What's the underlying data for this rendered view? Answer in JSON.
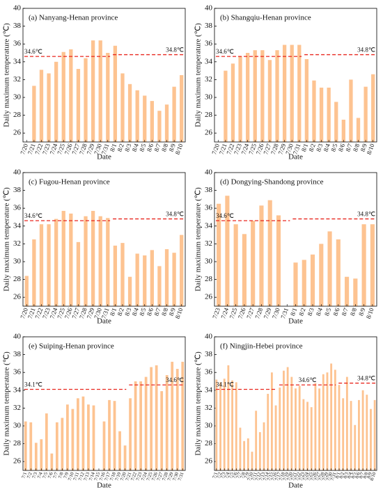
{
  "chart_data": [
    {
      "type": "bar",
      "title": "(a) Nanyang-Henan province",
      "xlabel": "Date",
      "ylabel": "Daily maximum temperature (℃)",
      "color": "#fdc391",
      "categories": [
        "7/20",
        "7/21",
        "7/22",
        "7/23",
        "7/24",
        "7/25",
        "7/26",
        "7/27",
        "7/28",
        "7/29",
        "7/30",
        "7/31",
        "8/1",
        "8/2",
        "8/3",
        "8/4",
        "8/5",
        "8/6",
        "8/7",
        "8/8",
        "8/9",
        "8/10"
      ],
      "values": [
        null,
        31.3,
        33.1,
        32.7,
        34.0,
        35.1,
        35.4,
        33.2,
        34.4,
        36.4,
        36.4,
        35.0,
        35.8,
        32.7,
        31.5,
        30.8,
        30.2,
        29.6,
        28.5,
        29.2,
        31.2,
        32.5
      ],
      "ylim": [
        25,
        40
      ],
      "yticks": [
        26,
        28,
        30,
        32,
        34,
        36,
        38,
        40
      ],
      "threshold_color": "#e8261e",
      "thresholds": [
        {
          "value": 34.6,
          "label": "34.6℃",
          "start": "7/20",
          "end": "7/31"
        },
        {
          "value": 34.8,
          "label": "34.8℃",
          "start": "8/1",
          "end": "8/10"
        }
      ]
    },
    {
      "type": "bar",
      "title": "(b) Shangqiu-Henan province",
      "xlabel": "Date",
      "ylabel": "Daily maximum temperature (℃)",
      "color": "#fdc391",
      "categories": [
        "7/20",
        "7/21",
        "7/22",
        "7/23",
        "7/24",
        "7/25",
        "7/26",
        "7/27",
        "7/28",
        "7/29",
        "7/30",
        "7/31",
        "8/1",
        "8/2",
        "8/3",
        "8/4",
        "8/5",
        "8/6",
        "8/7",
        "8/8",
        "8/9",
        "8/10"
      ],
      "values": [
        null,
        33.0,
        33.8,
        34.6,
        35.0,
        35.3,
        35.3,
        34.2,
        35.3,
        35.9,
        35.9,
        35.9,
        34.3,
        31.9,
        31.1,
        31.1,
        29.5,
        27.5,
        32.0,
        27.7,
        31.2,
        32.6
      ],
      "ylim": [
        25,
        40
      ],
      "yticks": [
        26,
        28,
        30,
        32,
        34,
        36,
        38,
        40
      ],
      "threshold_color": "#e8261e",
      "thresholds": [
        {
          "value": 34.6,
          "label": "34.6℃",
          "start": "7/20",
          "end": "7/31"
        },
        {
          "value": 34.8,
          "label": "34.8℃",
          "start": "8/1",
          "end": "8/10"
        }
      ]
    },
    {
      "type": "bar",
      "title": "(c) Fugou-Henan province",
      "xlabel": "Date",
      "ylabel": "Daily maximum temperature (℃)",
      "color": "#fdc391",
      "categories": [
        "7/20",
        "7/21",
        "7/22",
        "7/23",
        "7/24",
        "7/25",
        "7/26",
        "7/27",
        "7/28",
        "7/29",
        "7/30",
        "7/31",
        "8/1",
        "8/2",
        "8/3",
        "8/4",
        "8/5",
        "8/6",
        "8/7",
        "8/8",
        "8/9",
        "8/10"
      ],
      "values": [
        28.4,
        32.5,
        34.2,
        34.2,
        34.8,
        35.7,
        35.4,
        32.2,
        35.1,
        35.7,
        35.1,
        34.9,
        31.8,
        32.1,
        28.3,
        30.9,
        30.7,
        31.3,
        29.5,
        31.4,
        31.0,
        33.0
      ],
      "ylim": [
        25,
        40
      ],
      "yticks": [
        26,
        28,
        30,
        32,
        34,
        36,
        38,
        40
      ],
      "threshold_color": "#e8261e",
      "thresholds": [
        {
          "value": 34.6,
          "label": "34.6℃",
          "start": "7/20",
          "end": "7/31"
        },
        {
          "value": 34.8,
          "label": "34.8℃",
          "start": "8/1",
          "end": "8/10"
        }
      ]
    },
    {
      "type": "bar",
      "title": "(d) Dongying-Shandong province",
      "xlabel": "Date",
      "ylabel": "Daily maximum temperature (℃)",
      "color": "#fdc391",
      "categories": [
        "7/23",
        "7/24",
        "7/25",
        "7/26",
        "7/27",
        "7/28",
        "7/29",
        "7/30",
        "7/31",
        "8/1",
        "8/2",
        "8/3",
        "8/4",
        "8/5",
        "8/6",
        "8/7",
        "8/8",
        "8/9",
        "8/10"
      ],
      "values": [
        36.5,
        37.4,
        34.2,
        33.1,
        34.6,
        36.3,
        36.9,
        35.2,
        null,
        29.9,
        30.2,
        30.8,
        32.0,
        33.4,
        32.5,
        28.3,
        28.1,
        34.2,
        34.2
      ],
      "ylim": [
        25,
        40
      ],
      "yticks": [
        26,
        28,
        30,
        32,
        34,
        36,
        38,
        40
      ],
      "threshold_color": "#e8261e",
      "thresholds": [
        {
          "value": 34.6,
          "label": "34.6℃",
          "start": "7/23",
          "end": "7/31"
        },
        {
          "value": 34.8,
          "label": "34.8℃",
          "start": "8/1",
          "end": "8/10"
        }
      ]
    },
    {
      "type": "bar",
      "title": "(e) Suiping-Henan province",
      "xlabel": "Date",
      "ylabel": "Daily maximum temperature (℃)",
      "color": "#fdc391",
      "categories": [
        "7/1",
        "7/2",
        "7/3",
        "7/4",
        "7/5",
        "7/6",
        "7/7",
        "7/8",
        "7/9",
        "7/10",
        "7/11",
        "7/12",
        "7/13",
        "7/14",
        "7/15",
        "7/16",
        "7/17",
        "7/18",
        "7/19",
        "7/20",
        "7/21",
        "7/22",
        "7/23",
        "7/24",
        "7/25",
        "7/26",
        "7/27",
        "7/28",
        "7/29",
        "7/30",
        "7/31"
      ],
      "values": [
        30.5,
        30.4,
        28.1,
        28.5,
        31.4,
        26.9,
        30.4,
        30.9,
        32.4,
        31.9,
        33.1,
        33.3,
        32.4,
        32.3,
        null,
        30.5,
        32.9,
        32.8,
        29.4,
        27.8,
        33.1,
        35.0,
        35.0,
        35.5,
        36.6,
        36.8,
        33.9,
        35.7,
        37.2,
        36.4,
        37.2
      ],
      "ylim": [
        25,
        40
      ],
      "yticks": [
        26,
        28,
        30,
        32,
        34,
        36,
        38,
        40
      ],
      "threshold_color": "#e8261e",
      "thresholds": [
        {
          "value": 34.1,
          "label": "34.1℃",
          "start": "7/1",
          "end": "7/20"
        },
        {
          "value": 34.6,
          "label": "34.6℃",
          "start": "7/21",
          "end": "7/31"
        }
      ]
    },
    {
      "type": "bar",
      "title": "(f) Ningjin-Hebei province",
      "xlabel": "Date",
      "ylabel": "Daily maximum temperature (℃)",
      "color": "#fdc391",
      "categories": [
        "7/1",
        "7/2",
        "7/3",
        "7/4",
        "7/5",
        "7/6",
        "7/7",
        "7/8",
        "7/9",
        "7/10",
        "7/11",
        "7/12",
        "7/13",
        "7/14",
        "7/15",
        "7/16",
        "7/17",
        "7/18",
        "7/19",
        "7/20",
        "7/21",
        "7/22",
        "7/23",
        "7/24",
        "7/25",
        "7/26",
        "7/27",
        "7/28",
        "7/29",
        "7/30",
        "7/31",
        "8/1",
        "8/2",
        "8/3",
        "8/4",
        "8/5",
        "8/6",
        "8/7",
        "8/8",
        "8/9",
        "8/10"
      ],
      "values": [
        35.2,
        34.9,
        35.3,
        36.8,
        35.1,
        34.9,
        29.8,
        28.3,
        28.6,
        27.1,
        31.7,
        29.3,
        30.4,
        33.6,
        36.0,
        32.3,
        34.3,
        36.2,
        36.6,
        35.5,
        34.2,
        34.5,
        33.0,
        32.7,
        32.1,
        34.8,
        34.2,
        35.8,
        36.0,
        37.0,
        36.3,
        34.6,
        33.1,
        35.5,
        32.8,
        30.1,
        32.9,
        34.0,
        33.5,
        31.9,
        32.9
      ],
      "ylim": [
        25,
        40
      ],
      "yticks": [
        26,
        28,
        30,
        32,
        34,
        36,
        38,
        40
      ],
      "threshold_color": "#e8261e",
      "thresholds": [
        {
          "value": 34.1,
          "label": "34.1℃",
          "start": "7/1",
          "end": "7/16"
        },
        {
          "value": 34.6,
          "label": "34.6℃",
          "start": "7/17",
          "end": "7/31"
        },
        {
          "value": 34.8,
          "label": "34.8℃",
          "start": "8/1",
          "end": "8/10"
        }
      ]
    }
  ]
}
